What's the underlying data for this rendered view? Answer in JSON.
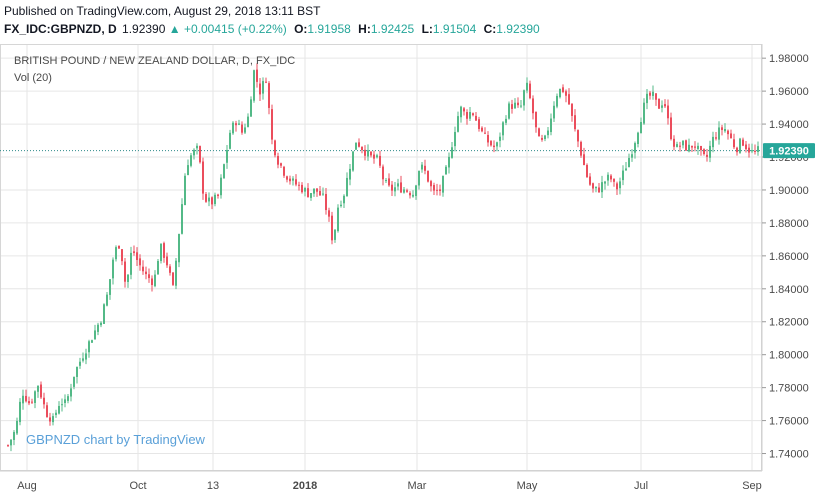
{
  "header": {
    "published": "Published on TradingView.com, August 29, 2018 13:11 BST",
    "symbol": "FX_IDC:GBPNZD, D",
    "close": "1.92390",
    "change_arrow": "▲",
    "change": "+0.00415 (+0.22%)",
    "open_label": "O:",
    "open": "1.91958",
    "high_label": "H:",
    "high": "1.92425",
    "low_label": "L:",
    "low": "1.91504",
    "close_label": "C:",
    "close_val": "1.92390"
  },
  "chart_data": {
    "type": "candlestick",
    "title": "BRITISH POUND / NEW ZEALAND DOLLAR, D, FX_IDC",
    "volume_label": "Vol (20)",
    "watermark": "GBPNZD chart by TradingView",
    "last_price_label": "1.92390",
    "last_price": 1.9239,
    "ylim": [
      1.73,
      1.988
    ],
    "y_ticks": [
      "1.98000",
      "1.96000",
      "1.94000",
      "1.92000",
      "1.90000",
      "1.88000",
      "1.86000",
      "1.84000",
      "1.82000",
      "1.80000",
      "1.78000",
      "1.76000",
      "1.74000"
    ],
    "x_ticks": [
      "Aug",
      "Oct",
      "13",
      "2018",
      "Mar",
      "May",
      "Jul",
      "Sep"
    ],
    "grid": true,
    "colors": {
      "up": "#53b987",
      "down": "#eb4d5c",
      "grid": "#e6e6e6",
      "last_line": "#2e8b8b",
      "last_bg": "#26a69a",
      "watermark": "#5aa0d8"
    },
    "close_path": [
      [
        0,
        1.745
      ],
      [
        8,
        1.755
      ],
      [
        14,
        1.778
      ],
      [
        22,
        1.77
      ],
      [
        30,
        1.782
      ],
      [
        38,
        1.765
      ],
      [
        45,
        1.76
      ],
      [
        52,
        1.772
      ],
      [
        58,
        1.77
      ],
      [
        66,
        1.788
      ],
      [
        75,
        1.8
      ],
      [
        85,
        1.812
      ],
      [
        93,
        1.822
      ],
      [
        100,
        1.838
      ],
      [
        106,
        1.862
      ],
      [
        112,
        1.868
      ],
      [
        118,
        1.84
      ],
      [
        124,
        1.865
      ],
      [
        130,
        1.856
      ],
      [
        138,
        1.848
      ],
      [
        146,
        1.844
      ],
      [
        152,
        1.866
      ],
      [
        158,
        1.858
      ],
      [
        165,
        1.84
      ],
      [
        172,
        1.88
      ],
      [
        178,
        1.915
      ],
      [
        184,
        1.922
      ],
      [
        190,
        1.925
      ],
      [
        196,
        1.895
      ],
      [
        203,
        1.892
      ],
      [
        210,
        1.896
      ],
      [
        216,
        1.915
      ],
      [
        222,
        1.935
      ],
      [
        228,
        1.942
      ],
      [
        234,
        1.935
      ],
      [
        240,
        1.944
      ],
      [
        246,
        1.972
      ],
      [
        252,
        1.96
      ],
      [
        258,
        1.968
      ],
      [
        264,
        1.93
      ],
      [
        270,
        1.918
      ],
      [
        277,
        1.91
      ],
      [
        284,
        1.905
      ],
      [
        292,
        1.902
      ],
      [
        300,
        1.898
      ],
      [
        308,
        1.9
      ],
      [
        315,
        1.895
      ],
      [
        320,
        1.885
      ],
      [
        325,
        1.868
      ],
      [
        330,
        1.89
      ],
      [
        336,
        1.898
      ],
      [
        342,
        1.915
      ],
      [
        348,
        1.93
      ],
      [
        355,
        1.925
      ],
      [
        362,
        1.92
      ],
      [
        370,
        1.918
      ],
      [
        376,
        1.905
      ],
      [
        382,
        1.9
      ],
      [
        390,
        1.902
      ],
      [
        398,
        1.9
      ],
      [
        405,
        1.898
      ],
      [
        412,
        1.915
      ],
      [
        418,
        1.91
      ],
      [
        425,
        1.898
      ],
      [
        432,
        1.9
      ],
      [
        440,
        1.915
      ],
      [
        446,
        1.935
      ],
      [
        452,
        1.95
      ],
      [
        458,
        1.945
      ],
      [
        464,
        1.948
      ],
      [
        470,
        1.94
      ],
      [
        476,
        1.932
      ],
      [
        482,
        1.928
      ],
      [
        488,
        1.925
      ],
      [
        494,
        1.938
      ],
      [
        500,
        1.95
      ],
      [
        506,
        1.952
      ],
      [
        512,
        1.948
      ],
      [
        518,
        1.965
      ],
      [
        524,
        1.95
      ],
      [
        530,
        1.93
      ],
      [
        536,
        1.928
      ],
      [
        542,
        1.942
      ],
      [
        548,
        1.958
      ],
      [
        554,
        1.962
      ],
      [
        560,
        1.955
      ],
      [
        566,
        1.938
      ],
      [
        572,
        1.925
      ],
      [
        578,
        1.91
      ],
      [
        584,
        1.9
      ],
      [
        590,
        1.9
      ],
      [
        596,
        1.905
      ],
      [
        602,
        1.908
      ],
      [
        608,
        1.9
      ],
      [
        614,
        1.908
      ],
      [
        620,
        1.918
      ],
      [
        626,
        1.928
      ],
      [
        632,
        1.942
      ],
      [
        638,
        1.955
      ],
      [
        644,
        1.958
      ],
      [
        650,
        1.95
      ],
      [
        656,
        1.955
      ],
      [
        662,
        1.935
      ],
      [
        668,
        1.925
      ],
      [
        674,
        1.928
      ],
      [
        680,
        1.925
      ],
      [
        686,
        1.928
      ],
      [
        692,
        1.922
      ],
      [
        698,
        1.918
      ],
      [
        704,
        1.93
      ],
      [
        710,
        1.935
      ],
      [
        716,
        1.938
      ],
      [
        722,
        1.932
      ],
      [
        728,
        1.925
      ],
      [
        734,
        1.93
      ],
      [
        740,
        1.925
      ],
      [
        746,
        1.922
      ],
      [
        750,
        1.9239
      ]
    ]
  }
}
